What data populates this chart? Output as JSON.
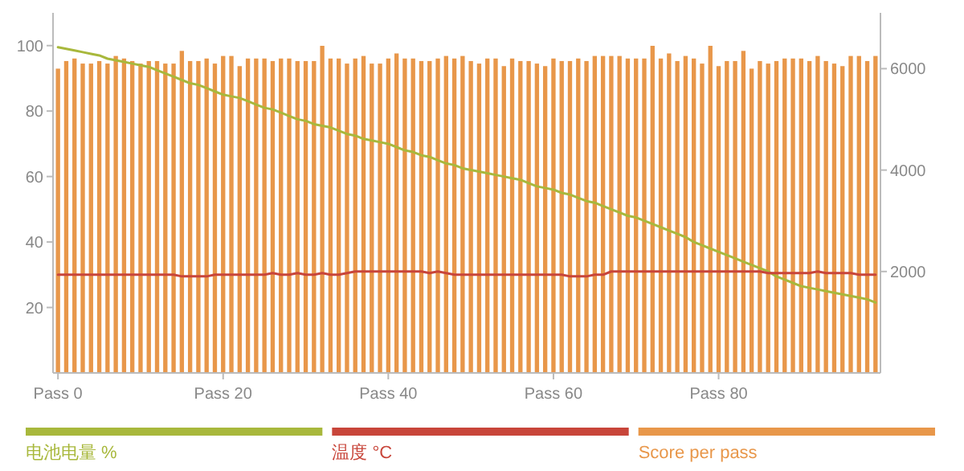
{
  "chart_data": {
    "type": "bar",
    "categories": [
      "Pass 0",
      null,
      null,
      null,
      null,
      null,
      null,
      null,
      null,
      null,
      null,
      null,
      null,
      null,
      null,
      null,
      null,
      null,
      null,
      null,
      "Pass 20",
      null,
      null,
      null,
      null,
      null,
      null,
      null,
      null,
      null,
      null,
      null,
      null,
      null,
      null,
      null,
      null,
      null,
      null,
      null,
      "Pass 40",
      null,
      null,
      null,
      null,
      null,
      null,
      null,
      null,
      null,
      null,
      null,
      null,
      null,
      null,
      null,
      null,
      null,
      null,
      null,
      "Pass 60",
      null,
      null,
      null,
      null,
      null,
      null,
      null,
      null,
      null,
      null,
      null,
      null,
      null,
      null,
      null,
      null,
      null,
      null,
      null,
      "Pass 80",
      null,
      null,
      null,
      null,
      null,
      null,
      null,
      null,
      null,
      null,
      null,
      null,
      null,
      null,
      null,
      null,
      null,
      null,
      null
    ],
    "ylim": [
      0,
      110
    ],
    "yticks": [
      20,
      40,
      60,
      80,
      100
    ],
    "y2lim": [
      0,
      7100
    ],
    "y2ticks": [
      2000,
      4000,
      6000
    ],
    "series": [
      {
        "name": "电池电量 %",
        "type": "line",
        "color": "#a8b83c",
        "values": [
          99.5,
          99,
          98.5,
          98,
          97.5,
          97,
          96,
          95.5,
          95,
          94.5,
          94,
          93.5,
          92.5,
          91.5,
          90.5,
          89.5,
          88.5,
          88,
          87,
          86,
          85,
          84.5,
          84,
          83,
          82,
          81,
          80.5,
          79.5,
          78.5,
          77.5,
          77,
          76,
          75.5,
          75,
          74,
          73,
          72.5,
          71.5,
          71,
          70.5,
          70,
          69,
          68,
          67.5,
          66.5,
          66,
          65,
          64,
          63.5,
          62.5,
          62,
          61.5,
          61,
          60.5,
          60,
          59.5,
          59,
          58,
          57,
          56.5,
          56,
          55,
          54.5,
          53.5,
          52.5,
          52,
          51,
          50,
          49,
          48,
          47.5,
          46.5,
          45.5,
          44.5,
          43.5,
          42.5,
          41.5,
          40,
          39,
          38,
          37,
          36,
          35,
          34,
          33,
          32,
          31,
          29.5,
          28.5,
          27.5,
          26.5,
          26,
          25.5,
          25,
          24.5,
          24,
          23.5,
          23,
          22.5,
          21.5
        ]
      },
      {
        "name": "温度 °C",
        "type": "line",
        "color": "#c8453a",
        "values": [
          30,
          30,
          30,
          30,
          30,
          30,
          30,
          30,
          30,
          30,
          30,
          30,
          30,
          30,
          30,
          29.5,
          29.5,
          29.5,
          29.5,
          30,
          30,
          30,
          30,
          30,
          30,
          30,
          30.5,
          30,
          30,
          30.5,
          30,
          30,
          30.5,
          30,
          30,
          30.5,
          31,
          31,
          31,
          31,
          31,
          31,
          31,
          31,
          31,
          30.5,
          31,
          30.5,
          30,
          30,
          30,
          30,
          30,
          30,
          30,
          30,
          30,
          30,
          30,
          30,
          30,
          30,
          29.5,
          29.5,
          29.5,
          30,
          30,
          31,
          31,
          31,
          31,
          31,
          31,
          31,
          31,
          31,
          31,
          31,
          31,
          31,
          31,
          31,
          31,
          31,
          31,
          31,
          30.5,
          30.5,
          30.5,
          30.5,
          30.5,
          30.5,
          31,
          30.5,
          30.5,
          30.5,
          30.5,
          30,
          30,
          30
        ]
      },
      {
        "name": "Score per pass",
        "axis": "y2",
        "color": "#e8974a",
        "values": [
          6000,
          6150,
          6200,
          6100,
          6100,
          6150,
          6100,
          6250,
          6200,
          6150,
          6100,
          6150,
          6150,
          6100,
          6100,
          6350,
          6150,
          6150,
          6200,
          6100,
          6250,
          6250,
          6050,
          6200,
          6200,
          6200,
          6150,
          6200,
          6200,
          6150,
          6150,
          6150,
          6450,
          6200,
          6200,
          6100,
          6200,
          6250,
          6100,
          6100,
          6200,
          6300,
          6200,
          6200,
          6150,
          6150,
          6200,
          6250,
          6200,
          6250,
          6150,
          6100,
          6200,
          6200,
          6050,
          6200,
          6150,
          6150,
          6100,
          6050,
          6200,
          6150,
          6150,
          6200,
          6150,
          6250,
          6250,
          6250,
          6250,
          6200,
          6200,
          6200,
          6450,
          6200,
          6300,
          6150,
          6250,
          6200,
          6100,
          6450,
          6050,
          6150,
          6150,
          6350,
          6000,
          6150,
          6100,
          6150,
          6200,
          6200,
          6200,
          6150,
          6250,
          6150,
          6100,
          6050,
          6250,
          6250,
          6150,
          6250
        ]
      }
    ],
    "legend": "bottom"
  }
}
